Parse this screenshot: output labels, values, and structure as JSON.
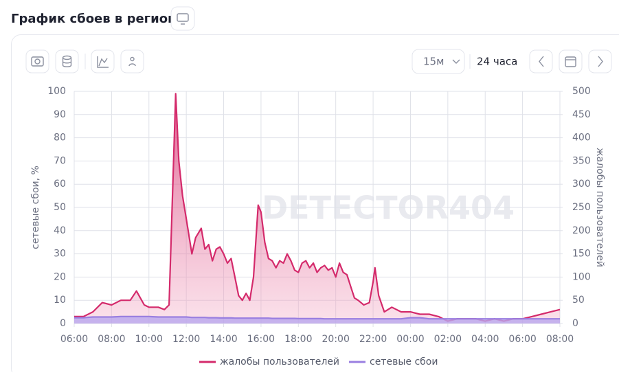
{
  "header": {
    "title": "График сбоев в регионе"
  },
  "toolbar": {
    "interval": "15м",
    "range": "24 часа"
  },
  "chart_data": {
    "type": "line",
    "watermark": "DETECTOR404",
    "y_label": "сетевые сбои, %",
    "y2_label": "жалобы пользователей",
    "x": [
      6,
      6.5,
      7,
      7.5,
      8,
      8.5,
      9,
      9.33,
      9.75,
      10,
      10.5,
      10.83,
      11.08,
      11.43,
      11.6,
      11.8,
      12,
      12.3,
      12.5,
      12.8,
      13,
      13.2,
      13.4,
      13.6,
      13.8,
      14,
      14.2,
      14.4,
      14.6,
      14.8,
      15,
      15.2,
      15.4,
      15.6,
      15.85,
      16,
      16.2,
      16.4,
      16.6,
      16.8,
      17,
      17.2,
      17.4,
      17.6,
      17.8,
      18,
      18.2,
      18.4,
      18.6,
      18.8,
      19,
      19.2,
      19.4,
      19.6,
      19.8,
      20,
      20.2,
      20.4,
      20.6,
      20.8,
      21,
      21.2,
      21.5,
      21.8,
      22,
      22.1,
      22.3,
      22.6,
      23,
      23.5,
      24,
      24.5,
      25,
      25.5,
      26,
      26.5,
      27,
      27.5,
      28,
      28.5,
      29,
      29.5,
      30,
      30.5,
      31,
      31.5,
      32
    ],
    "series": [
      {
        "name": "жалобы пользователей",
        "color": "#d42a6b",
        "axis": "y2",
        "values": [
          15,
          15,
          25,
          45,
          40,
          50,
          50,
          70,
          40,
          35,
          35,
          30,
          40,
          495,
          350,
          275,
          225,
          150,
          185,
          205,
          160,
          170,
          135,
          160,
          165,
          150,
          130,
          140,
          100,
          60,
          50,
          65,
          50,
          100,
          255,
          240,
          175,
          140,
          135,
          120,
          135,
          130,
          150,
          135,
          115,
          110,
          130,
          135,
          120,
          130,
          110,
          120,
          125,
          115,
          120,
          100,
          130,
          110,
          105,
          80,
          55,
          50,
          40,
          45,
          90,
          120,
          60,
          25,
          35,
          25,
          25,
          20,
          20,
          15,
          5,
          10,
          10,
          10,
          5,
          10,
          5,
          10,
          10,
          15,
          20,
          25,
          30
        ]
      },
      {
        "name": "сетевые сбои",
        "color": "#9a7fe0",
        "values": [
          2.5,
          2.5,
          2.8,
          2.8,
          2.8,
          3,
          3,
          3,
          3,
          3,
          2.8,
          2.8,
          2.8,
          2.8,
          2.8,
          2.8,
          2.8,
          2.6,
          2.6,
          2.6,
          2.6,
          2.5,
          2.5,
          2.5,
          2.4,
          2.4,
          2.4,
          2.4,
          2.3,
          2.3,
          2.3,
          2.3,
          2.3,
          2.3,
          2.3,
          2.3,
          2.3,
          2.3,
          2.2,
          2.2,
          2.2,
          2.2,
          2.2,
          2.2,
          2.2,
          2.1,
          2.1,
          2.1,
          2.1,
          2.1,
          2.1,
          2.1,
          2,
          2,
          2,
          2,
          2,
          2,
          2,
          2,
          2,
          2,
          2,
          2,
          2,
          2,
          2,
          2,
          2,
          2,
          2.5,
          2.5,
          2,
          2,
          2,
          2,
          2,
          2,
          2,
          2,
          2,
          2,
          2,
          2,
          2,
          2,
          2
        ]
      }
    ],
    "xlim": [
      6,
      32
    ],
    "xticks": [
      {
        "value": 6,
        "label": "06:00"
      },
      {
        "value": 8,
        "label": "08:00"
      },
      {
        "value": 10,
        "label": "10:00"
      },
      {
        "value": 12,
        "label": "12:00"
      },
      {
        "value": 14,
        "label": "14:00"
      },
      {
        "value": 16,
        "label": "16:00"
      },
      {
        "value": 18,
        "label": "18:00"
      },
      {
        "value": 20,
        "label": "20:00"
      },
      {
        "value": 22,
        "label": "22:00"
      },
      {
        "value": 24,
        "label": "00:00"
      },
      {
        "value": 26,
        "label": "02:00"
      },
      {
        "value": 28,
        "label": "04:00"
      },
      {
        "value": 30,
        "label": "06:00"
      },
      {
        "value": 32,
        "label": "08:00"
      }
    ],
    "ylim": [
      0,
      100
    ],
    "yticks": [
      0,
      10,
      20,
      30,
      40,
      50,
      60,
      70,
      80,
      90,
      100
    ],
    "y2lim": [
      0,
      500
    ],
    "y2ticks": [
      0,
      50,
      100,
      150,
      200,
      250,
      300,
      350,
      400,
      450,
      500
    ],
    "grid": true
  }
}
